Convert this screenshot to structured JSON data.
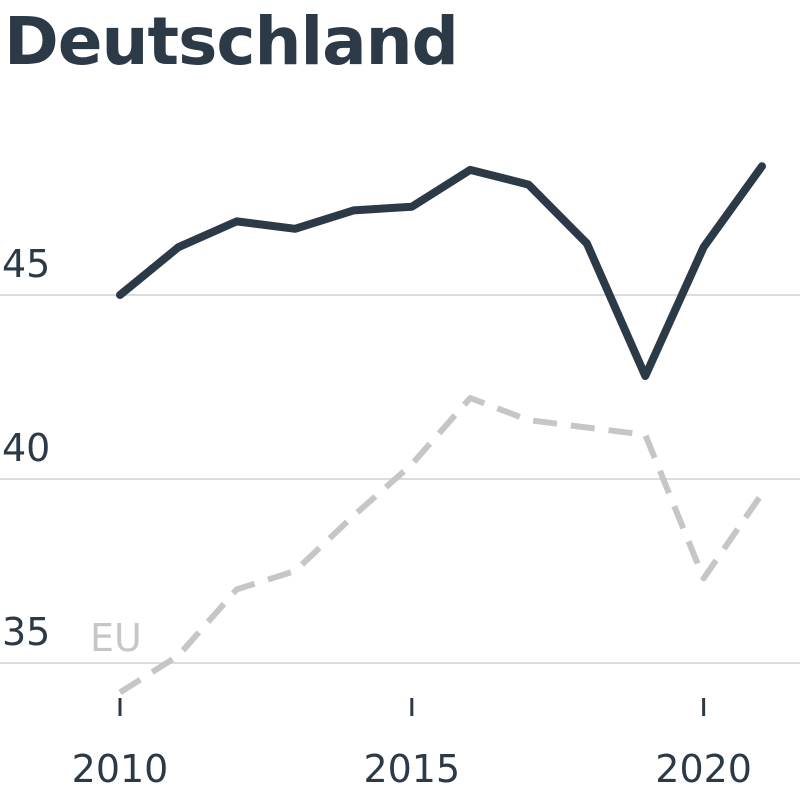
{
  "chart_data": {
    "type": "line",
    "title": "Deutschland",
    "xlabel": "",
    "ylabel": "",
    "x": [
      2010,
      2011,
      2012,
      2013,
      2014,
      2015,
      2016,
      2017,
      2018,
      2019,
      2020,
      2021
    ],
    "xlim": [
      2010,
      2021
    ],
    "ylim": [
      34,
      50
    ],
    "x_ticks": [
      2010,
      2015,
      2020
    ],
    "y_ticks": [
      35,
      40,
      45
    ],
    "grid": "horizontal",
    "series": [
      {
        "values": [
          45.0,
          46.3,
          47.0,
          46.8,
          47.3,
          47.4,
          48.4,
          48.0,
          46.4,
          42.8,
          46.3,
          48.5
        ],
        "color": "#2c3a48",
        "style": "solid"
      },
      {
        "name": "EU",
        "values": [
          34.2,
          35.2,
          37.0,
          37.5,
          39.0,
          40.4,
          42.2,
          41.6,
          41.4,
          41.2,
          37.3,
          39.6
        ],
        "color": "#c6c6c6",
        "style": "dashed"
      }
    ]
  },
  "colors": {
    "grid": "#dcdcdc",
    "text": "#2c3a48",
    "secondary_label": "#c6c6c6"
  }
}
